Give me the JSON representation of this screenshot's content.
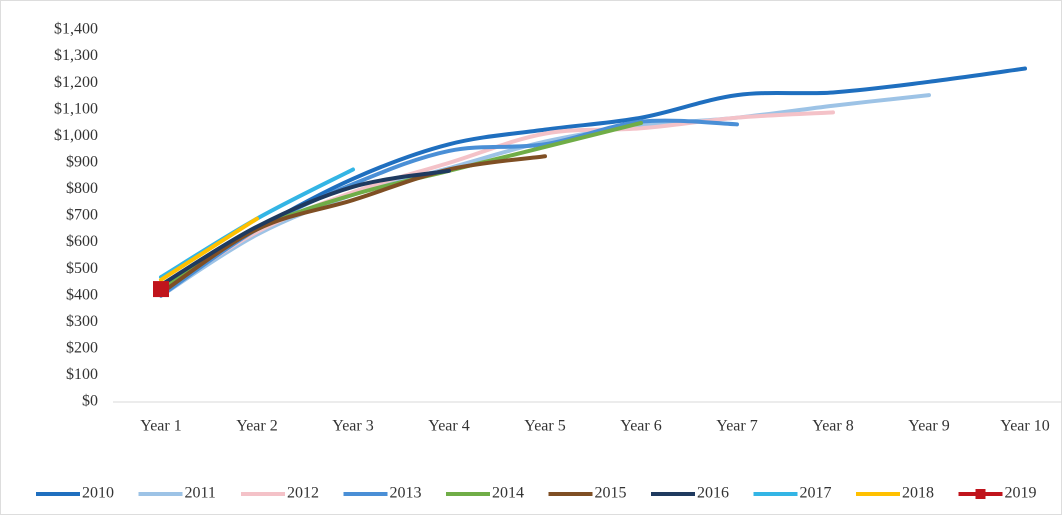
{
  "chart_data": {
    "type": "line",
    "smooth": true,
    "categories": [
      "Year 1",
      "Year 2",
      "Year 3",
      "Year 4",
      "Year 5",
      "Year 6",
      "Year 7",
      "Year 8",
      "Year 9",
      "Year 10"
    ],
    "ylim": [
      0,
      1400
    ],
    "yticks": [
      {
        "value": 0,
        "label": "$0"
      },
      {
        "value": 100,
        "label": "$100"
      },
      {
        "value": 200,
        "label": "$200"
      },
      {
        "value": 300,
        "label": "$300"
      },
      {
        "value": 400,
        "label": "$400"
      },
      {
        "value": 500,
        "label": "$500"
      },
      {
        "value": 600,
        "label": "$600"
      },
      {
        "value": 700,
        "label": "$700"
      },
      {
        "value": 800,
        "label": "$800"
      },
      {
        "value": 900,
        "label": "$900"
      },
      {
        "value": 1000,
        "label": "$1,000"
      },
      {
        "value": 1100,
        "label": "$1,100"
      },
      {
        "value": 1200,
        "label": "$1,200"
      },
      {
        "value": 1300,
        "label": "$1,300"
      },
      {
        "value": 1400,
        "label": "$1,400"
      }
    ],
    "grid": false,
    "legend": "bottom",
    "series": [
      {
        "name": "2010",
        "color": "#1f6fbf",
        "values": [
          420,
          650,
          840,
          970,
          1025,
          1070,
          1155,
          1165,
          1205,
          1255
        ]
      },
      {
        "name": "2011",
        "color": "#9dc3e6",
        "values": [
          400,
          630,
          780,
          880,
          980,
          1040,
          1070,
          1115,
          1155,
          null
        ]
      },
      {
        "name": "2012",
        "color": "#f4c2c8",
        "values": [
          410,
          640,
          790,
          900,
          1010,
          1030,
          1070,
          1090,
          null,
          null
        ]
      },
      {
        "name": "2013",
        "color": "#4a8fd6",
        "values": [
          400,
          650,
          820,
          945,
          970,
          1055,
          1045,
          null,
          null,
          null
        ]
      },
      {
        "name": "2014",
        "color": "#70ad47",
        "values": [
          430,
          650,
          780,
          870,
          960,
          1050,
          null,
          null,
          null,
          null
        ]
      },
      {
        "name": "2015",
        "color": "#7f4f24",
        "values": [
          410,
          650,
          760,
          875,
          925,
          null,
          null,
          null,
          null,
          null
        ]
      },
      {
        "name": "2016",
        "color": "#1f3a5f",
        "values": [
          440,
          660,
          810,
          870,
          null,
          null,
          null,
          null,
          null,
          null
        ]
      },
      {
        "name": "2017",
        "color": "#33b5e5",
        "values": [
          470,
          690,
          875,
          null,
          null,
          null,
          null,
          null,
          null,
          null
        ]
      },
      {
        "name": "2018",
        "color": "#ffc000",
        "values": [
          460,
          690,
          null,
          null,
          null,
          null,
          null,
          null,
          null,
          null
        ]
      },
      {
        "name": "2019",
        "color": "#c0141c",
        "marker": "square",
        "values": [
          425,
          null,
          null,
          null,
          null,
          null,
          null,
          null,
          null,
          null
        ]
      }
    ]
  }
}
